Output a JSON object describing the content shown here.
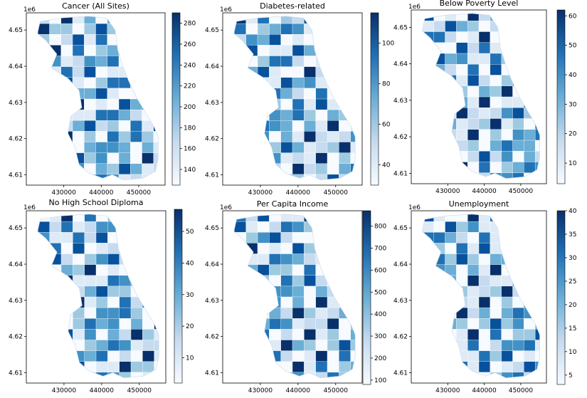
{
  "figure": {
    "scale_label": "1e6",
    "x_ticks": [
      "430000",
      "440000",
      "450000"
    ],
    "panels": [
      {
        "title": "Cancer (All Sites)",
        "y_ticks": [
          "4.65",
          "4.64",
          "4.63",
          "4.62",
          "4.61"
        ],
        "colorbar_ticks": [
          "280",
          "260",
          "240",
          "220",
          "200",
          "180",
          "160",
          "140"
        ],
        "colorbar_range": [
          125,
          290
        ]
      },
      {
        "title": "Diabetes-related",
        "y_ticks": [
          "4.65",
          "4.64",
          "4.63",
          "4.62",
          "4.61"
        ],
        "colorbar_ticks": [
          "100",
          "80",
          "60",
          "40"
        ],
        "colorbar_range": [
          30,
          115
        ]
      },
      {
        "title": "Below Poverty Level",
        "y_ticks": [
          "4.65",
          "4.64",
          "4.63",
          "4.62",
          "4.61"
        ],
        "colorbar_ticks": [
          "60",
          "50",
          "40",
          "30",
          "20",
          "10"
        ],
        "colorbar_range": [
          3,
          62
        ]
      },
      {
        "title": "No High School Diploma",
        "y_ticks": [
          "4.65",
          "4.64",
          "4.63",
          "4.62",
          "4.61"
        ],
        "colorbar_ticks": [
          "50",
          "40",
          "30",
          "20",
          "10"
        ],
        "colorbar_range": [
          2,
          57
        ]
      },
      {
        "title": "Per Capita Income",
        "y_ticks": [
          "4.65",
          "4.64",
          "4.63",
          "4.62",
          "4.61"
        ],
        "colorbar_ticks": [
          "800",
          "700",
          "600",
          "500",
          "400",
          "300",
          "200",
          "100"
        ],
        "colorbar_range": [
          80,
          870
        ]
      },
      {
        "title": "Unemployment",
        "y_ticks": [
          "4.65",
          "4.64",
          "4.63",
          "4.62",
          "4.61"
        ],
        "colorbar_ticks": [
          "40",
          "35",
          "30",
          "25",
          "20",
          "15",
          "10",
          "5"
        ],
        "colorbar_range": [
          3,
          40
        ]
      }
    ]
  },
  "colors": {
    "cmap": "Blues",
    "dark": "#08306b",
    "mid": "#4292c6",
    "light": "#f7fbff",
    "axis": "#000000"
  }
}
